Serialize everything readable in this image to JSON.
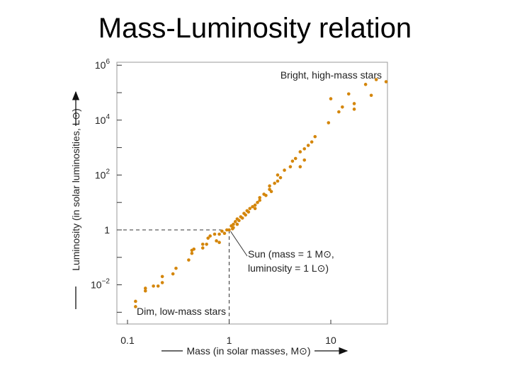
{
  "slide": {
    "title": "Mass-Luminosity relation"
  },
  "colors": {
    "point": "#d4860b",
    "axis": "#333333",
    "background": "#ffffff"
  },
  "chart_data": {
    "type": "scatter",
    "title": "Mass-Luminosity relation",
    "xlabel": "Mass (in solar masses, M⊙)",
    "ylabel": "Luminosity (in solar luminosities, L⊙)",
    "x_scale": "log",
    "y_scale": "log",
    "xlim": [
      0.1,
      40
    ],
    "ylim": [
      0.001,
      1000000
    ],
    "x_ticks": [
      {
        "value": 0.1,
        "label": "0.1"
      },
      {
        "value": 1,
        "label": "1"
      },
      {
        "value": 10,
        "label": "10"
      }
    ],
    "y_ticks": [
      {
        "value": 1000000,
        "base": "10",
        "exp": "6"
      },
      {
        "value": 10000,
        "base": "10",
        "exp": "4"
      },
      {
        "value": 100,
        "base": "10",
        "exp": "2"
      },
      {
        "value": 1,
        "base": "1",
        "exp": ""
      },
      {
        "value": 0.01,
        "base": "10",
        "exp": "−2"
      }
    ],
    "annotations": {
      "top": "Bright, high-mass stars",
      "bottom": "Dim, low-mass stars",
      "sun_line1": "Sun (mass = 1 M⊙,",
      "sun_line2": "luminosity = 1 L⊙)"
    },
    "sun": {
      "mass": 1,
      "luminosity": 1
    },
    "points": [
      {
        "m": 0.12,
        "l": 0.0016
      },
      {
        "m": 0.12,
        "l": 0.0025
      },
      {
        "m": 0.15,
        "l": 0.006
      },
      {
        "m": 0.15,
        "l": 0.0075
      },
      {
        "m": 0.18,
        "l": 0.009
      },
      {
        "m": 0.2,
        "l": 0.009
      },
      {
        "m": 0.22,
        "l": 0.012
      },
      {
        "m": 0.22,
        "l": 0.02
      },
      {
        "m": 0.28,
        "l": 0.025
      },
      {
        "m": 0.3,
        "l": 0.04
      },
      {
        "m": 0.4,
        "l": 0.08
      },
      {
        "m": 0.43,
        "l": 0.14
      },
      {
        "m": 0.43,
        "l": 0.18
      },
      {
        "m": 0.45,
        "l": 0.2
      },
      {
        "m": 0.55,
        "l": 0.3
      },
      {
        "m": 0.55,
        "l": 0.22
      },
      {
        "m": 0.6,
        "l": 0.3
      },
      {
        "m": 0.62,
        "l": 0.5
      },
      {
        "m": 0.65,
        "l": 0.6
      },
      {
        "m": 0.72,
        "l": 0.7
      },
      {
        "m": 0.75,
        "l": 0.4
      },
      {
        "m": 0.8,
        "l": 0.7
      },
      {
        "m": 0.8,
        "l": 0.35
      },
      {
        "m": 0.85,
        "l": 0.9
      },
      {
        "m": 0.9,
        "l": 0.75
      },
      {
        "m": 0.95,
        "l": 1.0
      },
      {
        "m": 1.0,
        "l": 1.0
      },
      {
        "m": 1.05,
        "l": 1.4
      },
      {
        "m": 1.08,
        "l": 1.1
      },
      {
        "m": 1.1,
        "l": 1.6
      },
      {
        "m": 1.1,
        "l": 1.2
      },
      {
        "m": 1.15,
        "l": 2.0
      },
      {
        "m": 1.2,
        "l": 1.6
      },
      {
        "m": 1.2,
        "l": 2.5
      },
      {
        "m": 1.25,
        "l": 2.2
      },
      {
        "m": 1.3,
        "l": 3.0
      },
      {
        "m": 1.35,
        "l": 2.7
      },
      {
        "m": 1.4,
        "l": 4.0
      },
      {
        "m": 1.45,
        "l": 3.5
      },
      {
        "m": 1.5,
        "l": 5.0
      },
      {
        "m": 1.55,
        "l": 4.5
      },
      {
        "m": 1.6,
        "l": 6.0
      },
      {
        "m": 1.7,
        "l": 7.0
      },
      {
        "m": 1.8,
        "l": 8.0
      },
      {
        "m": 1.8,
        "l": 6.0
      },
      {
        "m": 1.9,
        "l": 10
      },
      {
        "m": 2.0,
        "l": 12
      },
      {
        "m": 2.0,
        "l": 15
      },
      {
        "m": 2.2,
        "l": 20
      },
      {
        "m": 2.3,
        "l": 18
      },
      {
        "m": 2.5,
        "l": 30
      },
      {
        "m": 2.5,
        "l": 40
      },
      {
        "m": 2.6,
        "l": 25
      },
      {
        "m": 2.8,
        "l": 50
      },
      {
        "m": 3.0,
        "l": 60
      },
      {
        "m": 3.0,
        "l": 100
      },
      {
        "m": 3.2,
        "l": 80
      },
      {
        "m": 3.5,
        "l": 150
      },
      {
        "m": 4.0,
        "l": 200
      },
      {
        "m": 4.2,
        "l": 320
      },
      {
        "m": 4.5,
        "l": 400
      },
      {
        "m": 5.0,
        "l": 700
      },
      {
        "m": 5.0,
        "l": 200
      },
      {
        "m": 5.5,
        "l": 900
      },
      {
        "m": 5.5,
        "l": 350
      },
      {
        "m": 6.0,
        "l": 1200
      },
      {
        "m": 6.5,
        "l": 1600
      },
      {
        "m": 7.0,
        "l": 2500
      },
      {
        "m": 9.5,
        "l": 8000
      },
      {
        "m": 10,
        "l": 60000
      },
      {
        "m": 12,
        "l": 20000
      },
      {
        "m": 13,
        "l": 30000
      },
      {
        "m": 15,
        "l": 90000
      },
      {
        "m": 17,
        "l": 40000
      },
      {
        "m": 17,
        "l": 25000
      },
      {
        "m": 22,
        "l": 200000
      },
      {
        "m": 25,
        "l": 80000
      },
      {
        "m": 28,
        "l": 300000
      },
      {
        "m": 35,
        "l": 250000
      }
    ]
  }
}
